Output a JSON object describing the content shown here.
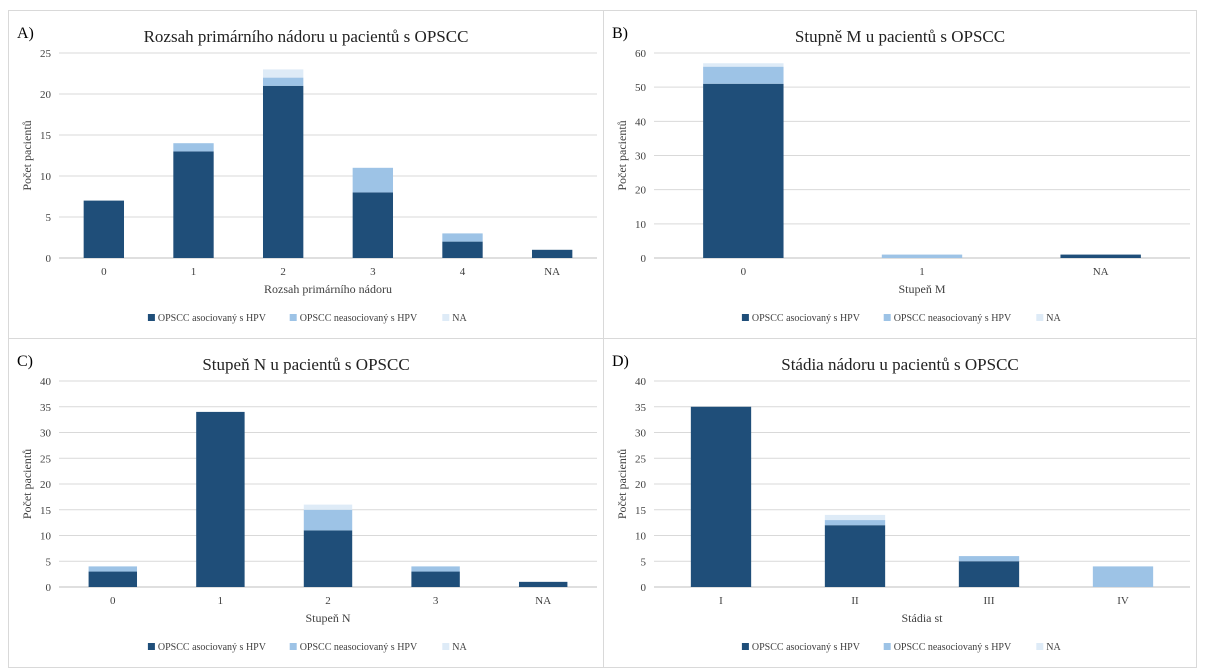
{
  "colors": {
    "hpv": "#1f4e79",
    "non_hpv": "#9dc3e6",
    "na": "#deebf7",
    "grid": "#d9d9d9",
    "axis": "#bfbfbf",
    "text": "#404040"
  },
  "legend": [
    "OPSCC asociovaný s HPV",
    "OPSCC neasociovaný s HPV",
    "NA"
  ],
  "chart_data": [
    {
      "panel": "A)",
      "type": "bar",
      "stacked": true,
      "title": "Rozsah primárního nádoru u pacientů s OPSCC",
      "xlabel": "Rozsah primárního nádoru",
      "ylabel": "Počet pacientů",
      "ylim": [
        0,
        25
      ],
      "yticks": [
        0,
        5,
        10,
        15,
        20,
        25
      ],
      "categories": [
        "0",
        "1",
        "2",
        "3",
        "4",
        "NA"
      ],
      "series": [
        {
          "name": "OPSCC asociovaný s HPV",
          "values": [
            7,
            13,
            21,
            8,
            2,
            1
          ]
        },
        {
          "name": "OPSCC neasociovaný s HPV",
          "values": [
            0,
            1,
            1,
            3,
            1,
            0
          ]
        },
        {
          "name": "NA",
          "values": [
            0,
            0,
            1,
            0,
            0,
            0
          ]
        }
      ],
      "legend_position": "bottom",
      "grid": true
    },
    {
      "panel": "B)",
      "type": "bar",
      "stacked": true,
      "title": "Stupně M u pacientů s OPSCC",
      "xlabel": "Stupeň M",
      "ylabel": "Počet pacientů",
      "ylim": [
        0,
        60
      ],
      "yticks": [
        0,
        10,
        20,
        30,
        40,
        50,
        60
      ],
      "categories": [
        "0",
        "1",
        "NA"
      ],
      "series": [
        {
          "name": "OPSCC asociovaný s HPV",
          "values": [
            51,
            0,
            1
          ]
        },
        {
          "name": "OPSCC neasociovaný s HPV",
          "values": [
            5,
            1,
            0
          ]
        },
        {
          "name": "NA",
          "values": [
            1,
            0,
            0
          ]
        }
      ],
      "legend_position": "bottom",
      "grid": true
    },
    {
      "panel": "C)",
      "type": "bar",
      "stacked": true,
      "title": "Stupeň N u pacientů s OPSCC",
      "xlabel": "Stupeň N",
      "ylabel": "Počet pacientů",
      "ylim": [
        0,
        40
      ],
      "yticks": [
        0,
        5,
        10,
        15,
        20,
        25,
        30,
        35,
        40
      ],
      "categories": [
        "0",
        "1",
        "2",
        "3",
        "NA"
      ],
      "series": [
        {
          "name": "OPSCC asociovaný s HPV",
          "values": [
            3,
            34,
            11,
            3,
            1
          ]
        },
        {
          "name": "OPSCC neasociovaný s HPV",
          "values": [
            1,
            0,
            4,
            1,
            0
          ]
        },
        {
          "name": "NA",
          "values": [
            0,
            0,
            1,
            0,
            0
          ]
        }
      ],
      "legend_position": "bottom",
      "grid": true
    },
    {
      "panel": "D)",
      "type": "bar",
      "stacked": true,
      "title": "Stádia nádoru u pacientů s OPSCC",
      "xlabel": "Stádia st",
      "ylabel": "Počet pacientů",
      "ylim": [
        0,
        40
      ],
      "yticks": [
        0,
        5,
        10,
        15,
        20,
        25,
        30,
        35,
        40
      ],
      "categories": [
        "I",
        "II",
        "III",
        "IV"
      ],
      "series": [
        {
          "name": "OPSCC asociovaný s HPV",
          "values": [
            35,
            12,
            5,
            0
          ]
        },
        {
          "name": "OPSCC neasociovaný s HPV",
          "values": [
            0,
            1,
            1,
            4
          ]
        },
        {
          "name": "NA",
          "values": [
            0,
            1,
            0,
            0
          ]
        }
      ],
      "legend_position": "bottom",
      "grid": true
    }
  ]
}
